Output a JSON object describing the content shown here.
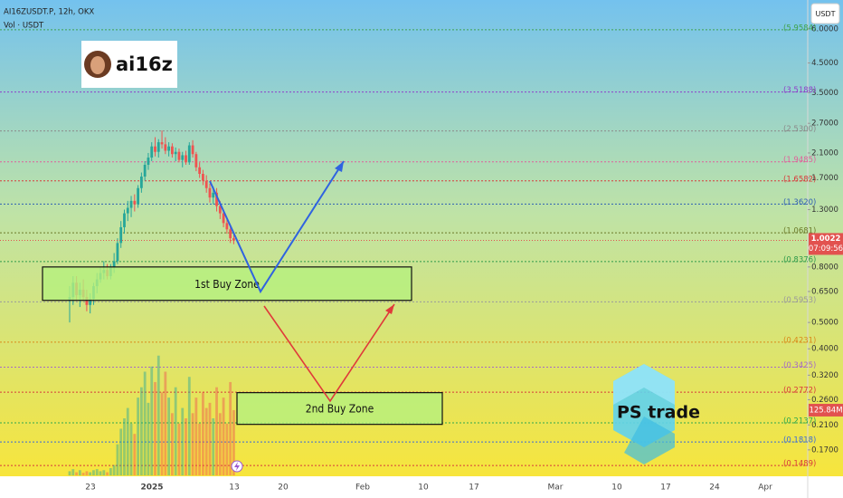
{
  "chart_data": {
    "type": "candlestick",
    "title": "AI16ZUSDT.P, 12h, OKX",
    "subtitle": "Vol · USDT",
    "currency": "USDT",
    "log_scale": true,
    "ylim": [
      0.137,
      7.67
    ],
    "yticks": [
      {
        "value": 6,
        "label": "6.0000"
      },
      {
        "value": 4.5,
        "label": "4.5000"
      },
      {
        "value": 3.5,
        "label": "3.5000"
      },
      {
        "value": 2.7,
        "label": "2.7000"
      },
      {
        "value": 2.1,
        "label": "2.1000"
      },
      {
        "value": 1.7,
        "label": "1.7000"
      },
      {
        "value": 1.3,
        "label": "1.3000"
      },
      {
        "value": 0.8,
        "label": "0.8000"
      },
      {
        "value": 0.65,
        "label": "0.6500"
      },
      {
        "value": 0.5,
        "label": "0.5000"
      },
      {
        "value": 0.4,
        "label": "0.4000"
      },
      {
        "value": 0.32,
        "label": "0.3200"
      },
      {
        "value": 0.26,
        "label": "0.2600"
      },
      {
        "value": 0.21,
        "label": "0.2100"
      },
      {
        "value": 0.17,
        "label": "0.1700"
      }
    ],
    "x_labels": [
      "23",
      "2025",
      "13",
      "20",
      "Feb",
      "10",
      "17",
      "Mar",
      "10",
      "17",
      "24",
      "Apr"
    ],
    "up_color": "#26a69a",
    "down_color": "#ef5350",
    "open": [
      0.6,
      0.62,
      0.7,
      0.63,
      0.66,
      0.62,
      0.58,
      0.61,
      0.68,
      0.72,
      0.76,
      0.78,
      0.74,
      0.8,
      0.84,
      0.98,
      1.12,
      1.26,
      1.32,
      1.4,
      1.36,
      1.56,
      1.72,
      1.9,
      2.02,
      2.22,
      2.12,
      2.3,
      2.26,
      2.14,
      2.22,
      2.08,
      2.12,
      1.98,
      2.06,
      1.94,
      2.24,
      2.08,
      1.86,
      1.76,
      1.66,
      1.56,
      1.44,
      1.5,
      1.34,
      1.26,
      1.16,
      1.1,
      1.02
    ],
    "high": [
      0.68,
      0.74,
      0.74,
      0.7,
      0.72,
      0.66,
      0.64,
      0.7,
      0.76,
      0.8,
      0.84,
      0.82,
      0.82,
      0.9,
      1.02,
      1.18,
      1.3,
      1.4,
      1.46,
      1.48,
      1.6,
      1.78,
      1.96,
      2.1,
      2.3,
      2.4,
      2.36,
      2.54,
      2.4,
      2.3,
      2.28,
      2.2,
      2.18,
      2.12,
      2.14,
      2.3,
      2.34,
      2.12,
      1.94,
      1.82,
      1.74,
      1.62,
      1.58,
      1.56,
      1.4,
      1.3,
      1.22,
      1.14,
      1.06
    ],
    "low": [
      0.5,
      0.58,
      0.6,
      0.57,
      0.6,
      0.55,
      0.54,
      0.58,
      0.64,
      0.7,
      0.72,
      0.72,
      0.72,
      0.76,
      0.82,
      0.94,
      1.06,
      1.18,
      1.22,
      1.28,
      1.32,
      1.5,
      1.66,
      1.82,
      1.96,
      2.04,
      2.02,
      2.18,
      2.08,
      2.04,
      2.02,
      1.96,
      1.94,
      1.86,
      1.9,
      1.9,
      2.02,
      1.8,
      1.7,
      1.6,
      1.5,
      1.38,
      1.36,
      1.28,
      1.2,
      1.12,
      1.06,
      0.98,
      0.97
    ],
    "close": [
      0.62,
      0.7,
      0.63,
      0.66,
      0.62,
      0.58,
      0.61,
      0.68,
      0.72,
      0.76,
      0.78,
      0.74,
      0.8,
      0.84,
      0.98,
      1.12,
      1.26,
      1.32,
      1.4,
      1.36,
      1.56,
      1.72,
      1.9,
      2.02,
      2.22,
      2.12,
      2.3,
      2.26,
      2.14,
      2.22,
      2.08,
      2.12,
      1.98,
      2.06,
      1.94,
      2.24,
      2.08,
      1.86,
      1.76,
      1.66,
      1.56,
      1.44,
      1.5,
      1.34,
      1.26,
      1.16,
      1.1,
      1.02,
      1.0
    ],
    "volume": [
      8,
      12,
      6,
      10,
      5,
      8,
      6,
      10,
      12,
      8,
      10,
      6,
      14,
      20,
      60,
      90,
      110,
      130,
      100,
      80,
      150,
      170,
      200,
      140,
      210,
      180,
      231,
      160,
      200,
      150,
      120,
      170,
      100,
      130,
      110,
      190,
      120,
      150,
      100,
      160,
      130,
      140,
      110,
      170,
      120,
      150,
      100,
      180,
      125.84
    ],
    "vlim": [
      0,
      400
    ],
    "current_volume": {
      "value": 125.84,
      "label": "125.84M"
    },
    "current_price": {
      "value": 1.0022,
      "label": "1.0022"
    },
    "countdown": "07:09:56",
    "fib_levels": [
      {
        "value": 5.9584,
        "label": "(5.9584)",
        "color": "#3fa34d"
      },
      {
        "value": 3.5188,
        "label": "(3.5188)",
        "color": "#8e3fc9"
      },
      {
        "value": 2.53,
        "label": "(2.5300)",
        "color": "#8a8a8a"
      },
      {
        "value": 1.9485,
        "label": "(1.9485)",
        "color": "#e0609a"
      },
      {
        "value": 1.6582,
        "label": "(1.6582)",
        "color": "#d83a3a"
      },
      {
        "value": 1.362,
        "label": "(1.3620)",
        "color": "#2f5fb3"
      },
      {
        "value": 1.0681,
        "label": "(1.0681)",
        "color": "#6b7a2a"
      },
      {
        "value": 0.8376,
        "label": "(0.8376)",
        "color": "#2e9a4a"
      },
      {
        "value": 0.5953,
        "label": "(0.5953)",
        "color": "#9a9a9a"
      },
      {
        "value": 0.4231,
        "label": "(0.4231)",
        "color": "#d98a1a"
      },
      {
        "value": 0.3425,
        "label": "(0.3425)",
        "color": "#a66bc4"
      },
      {
        "value": 0.2772,
        "label": "(0.2772)",
        "color": "#d83a3a"
      },
      {
        "value": 0.2137,
        "label": "(0.2137)",
        "color": "#2ea84a"
      },
      {
        "value": 0.1818,
        "label": "(0.1818)",
        "color": "#3a6bd8"
      },
      {
        "value": 0.1489,
        "label": "(0.1489)",
        "color": "#d83a3a"
      }
    ],
    "zones": [
      {
        "label": "1st Buy Zone",
        "top": 0.8,
        "bottom": 0.603
      },
      {
        "label": "2nd Buy Zone",
        "top": 0.276,
        "bottom": 0.211
      }
    ],
    "logos": [
      "ai16z",
      "PS trade"
    ]
  }
}
